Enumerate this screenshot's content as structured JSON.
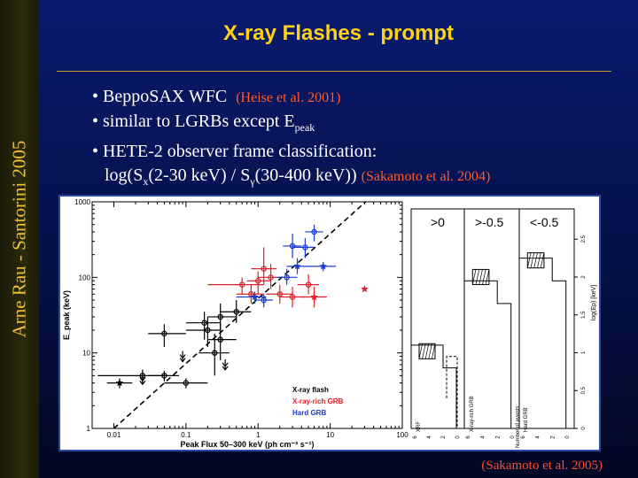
{
  "sidebar": {
    "text": "Arne Rau - Santorini 2005"
  },
  "slide": {
    "title": "X-ray Flashes - prompt",
    "bullets": {
      "b1_text": "• BeppoSAX WFC",
      "b1_ref": "(Heise et al. 2001)",
      "b2_text": "• similar to LGRBs except E",
      "b2_sub": "peak",
      "b3_text": "• HETE-2 observer frame classification:",
      "b4_a": "log(S",
      "b4_sub1": "x",
      "b4_b": "(2-30 keV) / S",
      "b4_sub2": "γ",
      "b4_c": "(30-400 keV))",
      "b4_ref": "(Sakamoto et al. 2004)"
    },
    "caption": "(Sakamoto et al. 2005)"
  },
  "chart_data": [
    {
      "type": "scatter",
      "xlabel": "Peak Flux 50–300 keV (ph cm⁻² s⁻¹)",
      "ylabel": "E_peak (keV)",
      "xscale": "log",
      "yscale": "log",
      "xlim": [
        0.005,
        100
      ],
      "ylim": [
        1,
        1000
      ],
      "x_tick_labels": [
        "0.01",
        "0.1",
        "1",
        "10",
        "100"
      ],
      "y_tick_labels": [
        "1",
        "10",
        "100",
        "1000"
      ],
      "legend": [
        "X-ray flash",
        "X-ray-rich GRB",
        "Hard GRB"
      ],
      "legend_placement": "bottom-right",
      "colors": {
        "xrf": "#000000",
        "xrr": "#e0202a",
        "hard": "#1a3ad0"
      },
      "series": [
        {
          "name": "X-ray flash",
          "points": [
            {
              "x": 0.012,
              "y": 4,
              "xerr": [
                0.008,
                0.018
              ],
              "yerr": [
                3.4,
                4.6
              ],
              "marker": "star"
            },
            {
              "x": 0.025,
              "y": 5,
              "xerr": [
                0.006,
                0.05
              ],
              "yerr": [
                4,
                6
              ],
              "marker": "circle"
            },
            {
              "x": 0.025,
              "y": 4.5,
              "upper_limit": true,
              "marker": "circle"
            },
            {
              "x": 0.05,
              "y": 5,
              "xerr": [
                0.03,
                0.08
              ],
              "yerr": [
                4.2,
                5.8
              ],
              "marker": "circle"
            },
            {
              "x": 0.09,
              "y": 9,
              "upper_limit": true,
              "marker": "circle"
            },
            {
              "x": 0.1,
              "y": 4,
              "xerr": [
                0.05,
                0.2
              ],
              "yerr": [
                3.4,
                4.6
              ],
              "marker": "circle"
            },
            {
              "x": 0.05,
              "y": 18,
              "xerr": [
                0.03,
                0.1
              ],
              "yerr": [
                12,
                24
              ],
              "marker": "circle"
            },
            {
              "x": 0.2,
              "y": 20,
              "xerr": [
                0.1,
                0.3
              ],
              "yerr": [
                12,
                30
              ],
              "marker": "circle"
            },
            {
              "x": 0.25,
              "y": 10,
              "xerr": [
                0.15,
                0.4
              ],
              "yerr": [
                5,
                18
              ],
              "marker": "circle"
            },
            {
              "x": 0.3,
              "y": 15,
              "xerr": [
                0.2,
                0.5
              ],
              "yerr": [
                8,
                25
              ],
              "marker": "circle"
            },
            {
              "x": 0.35,
              "y": 7,
              "upper_limit": true,
              "marker": "circle"
            },
            {
              "x": 0.3,
              "y": 30,
              "xerr": [
                0.2,
                0.5
              ],
              "yerr": [
                20,
                45
              ],
              "marker": "circle"
            },
            {
              "x": 0.5,
              "y": 35,
              "xerr": [
                0.3,
                0.8
              ],
              "yerr": [
                25,
                50
              ],
              "marker": "circle"
            },
            {
              "x": 0.18,
              "y": 25,
              "xerr": [
                0.1,
                0.3
              ],
              "yerr": [
                15,
                35
              ],
              "marker": "circle"
            }
          ]
        },
        {
          "name": "X-ray-rich GRB",
          "points": [
            {
              "x": 0.6,
              "y": 80,
              "xerr": [
                0.2,
                1.2
              ],
              "yerr": [
                60,
                100
              ],
              "marker": "circle"
            },
            {
              "x": 0.8,
              "y": 60,
              "xerr": [
                0.5,
                1.2
              ],
              "yerr": [
                45,
                80
              ],
              "marker": "circle"
            },
            {
              "x": 1.2,
              "y": 130,
              "xerr": [
                0.8,
                1.8
              ],
              "yerr": [
                80,
                250
              ],
              "marker": "circle"
            },
            {
              "x": 1.0,
              "y": 90,
              "xerr": [
                0.7,
                1.5
              ],
              "yerr": [
                60,
                120
              ],
              "marker": "circle"
            },
            {
              "x": 1.5,
              "y": 100,
              "xerr": [
                1.0,
                2.2
              ],
              "yerr": [
                70,
                150
              ],
              "marker": "circle"
            },
            {
              "x": 2.0,
              "y": 60,
              "xerr": [
                1.3,
                3.0
              ],
              "yerr": [
                45,
                80
              ],
              "marker": "circle"
            },
            {
              "x": 3.0,
              "y": 55,
              "xerr": [
                2.0,
                4.5
              ],
              "yerr": [
                40,
                75
              ],
              "marker": "circle"
            },
            {
              "x": 5.0,
              "y": 80,
              "xerr": [
                3.5,
                7.0
              ],
              "yerr": [
                60,
                110
              ],
              "marker": "circle"
            },
            {
              "x": 6.0,
              "y": 55,
              "xerr": [
                4.0,
                9.0
              ],
              "yerr": [
                40,
                75
              ],
              "marker": "star"
            },
            {
              "x": 30.0,
              "y": 70,
              "marker": "star"
            }
          ]
        },
        {
          "name": "Hard GRB",
          "points": [
            {
              "x": 0.9,
              "y": 55,
              "xerr": [
                0.5,
                1.3
              ],
              "yerr": [
                45,
                65
              ],
              "marker": "star"
            },
            {
              "x": 1.2,
              "y": 50,
              "xerr": [
                0.9,
                1.6
              ],
              "yerr": [
                40,
                60
              ],
              "marker": "circle"
            },
            {
              "x": 2.5,
              "y": 100,
              "xerr": [
                1.8,
                3.5
              ],
              "yerr": [
                80,
                130
              ],
              "marker": "circle"
            },
            {
              "x": 3.0,
              "y": 260,
              "xerr": [
                2.2,
                4.0
              ],
              "yerr": [
                180,
                380
              ],
              "marker": "circle"
            },
            {
              "x": 3.5,
              "y": 140,
              "xerr": [
                2.5,
                5.0
              ],
              "yerr": [
                110,
                180
              ],
              "marker": "star"
            },
            {
              "x": 4.5,
              "y": 250,
              "xerr": [
                3.0,
                6.0
              ],
              "yerr": [
                180,
                330
              ],
              "marker": "circle"
            },
            {
              "x": 6.0,
              "y": 400,
              "xerr": [
                4.5,
                8.0
              ],
              "yerr": [
                300,
                500
              ],
              "marker": "circle"
            },
            {
              "x": 8.0,
              "y": 140,
              "xerr": [
                5.0,
                12.0
              ],
              "yerr": [
                120,
                160
              ],
              "marker": "star"
            }
          ]
        }
      ]
    },
    {
      "type": "histogram",
      "panels": [
        "XRF",
        "X-ray-rich GRB",
        "Hard GRB"
      ],
      "top_labels": [
        ">0",
        ">-0.5",
        "<-0.5"
      ],
      "bottom_tick_labels": [
        "6",
        "4",
        "2",
        "0"
      ],
      "bottom_axis_label": "Number of events",
      "right_axis_label": "log(Ep) [keV]",
      "right_tick_labels": [
        "0",
        "0.5",
        "1",
        "1.5",
        "2",
        "2.5"
      ],
      "ylim": [
        0,
        2.9
      ]
    }
  ]
}
